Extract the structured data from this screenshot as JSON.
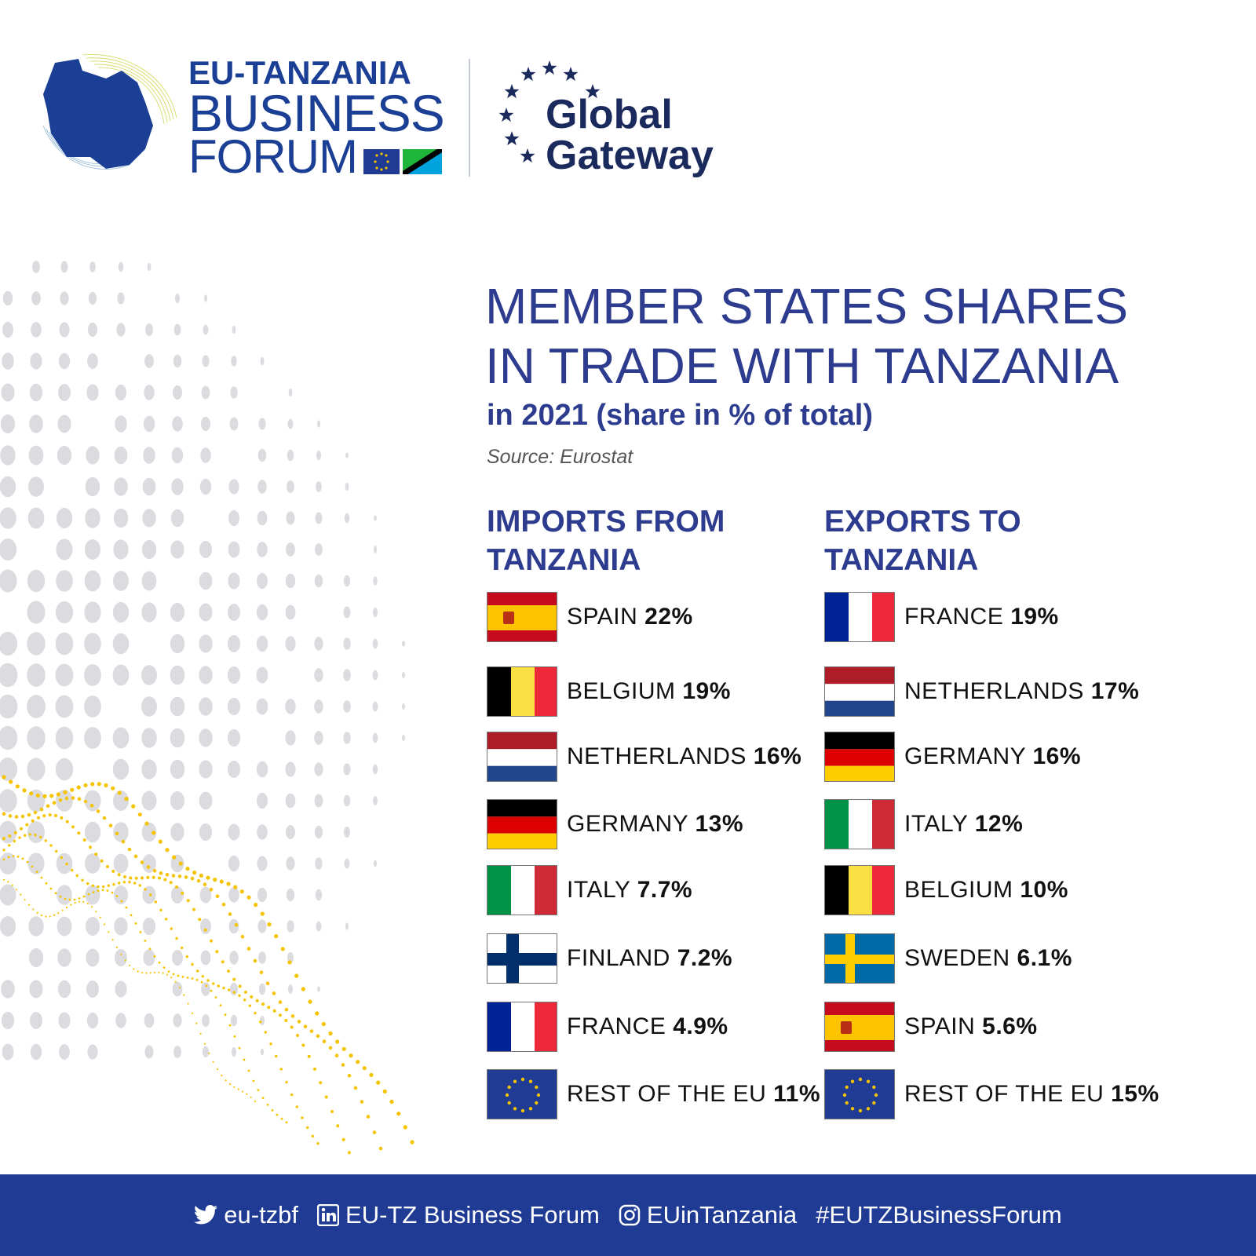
{
  "header": {
    "brand_line1": "EU-TANZANIA",
    "brand_line2": "BUSINESS",
    "brand_line3": "FORUM",
    "gateway_line1": "Global",
    "gateway_line2": "Gateway"
  },
  "title": {
    "line1": "MEMBER STATES SHARES",
    "line2": "IN TRADE WITH TANZANIA",
    "subtitle": "in 2021 (share in % of total)",
    "source": "Source: Eurostat"
  },
  "imports": {
    "heading_line1": "IMPORTS FROM",
    "heading_line2": "TANZANIA",
    "items": [
      {
        "country": "SPAIN",
        "share": "22%",
        "flag": "spain"
      },
      {
        "country": "BELGIUM",
        "share": "19%",
        "flag": "belgium"
      },
      {
        "country": "NETHERLANDS",
        "share": "16%",
        "flag": "netherlands"
      },
      {
        "country": "GERMANY",
        "share": "13%",
        "flag": "germany"
      },
      {
        "country": "ITALY",
        "share": "7.7%",
        "flag": "italy"
      },
      {
        "country": "FINLAND ",
        "share": "7.2%",
        "flag": "finland"
      },
      {
        "country": "FRANCE",
        "share": "4.9%",
        "flag": "france"
      },
      {
        "country": "REST OF THE EU",
        "share": "11%",
        "flag": "eu"
      }
    ]
  },
  "exports": {
    "heading_line1": "EXPORTS TO",
    "heading_line2": "TANZANIA",
    "items": [
      {
        "country": "FRANCE",
        "share": "19%",
        "flag": "france"
      },
      {
        "country": "NETHERLANDS",
        "share": "17%",
        "flag": "netherlands"
      },
      {
        "country": "GERMANY",
        "share": "16%",
        "flag": "germany"
      },
      {
        "country": "ITALY",
        "share": "12%",
        "flag": "italy"
      },
      {
        "country": "BELGIUM",
        "share": "10%",
        "flag": "belgium"
      },
      {
        "country": "SWEDEN",
        "share": "6.1%",
        "flag": "sweden"
      },
      {
        "country": "SPAIN",
        "share": "5.6%",
        "flag": "spain"
      },
      {
        "country": "REST OF THE EU",
        "share": "15%",
        "flag": "eu"
      }
    ]
  },
  "footer": {
    "twitter": "eu-tzbf",
    "linkedin": "EU-TZ Business Forum",
    "instagram": "EUinTanzania",
    "hashtag": "#EUTZBusinessForum"
  },
  "colors": {
    "brand_blue": "#1a3f95",
    "title_blue": "#2d3c8e",
    "footer_blue": "#1f3b94",
    "accent_yellow": "#f5c400",
    "dot_grey": "#dcdce0"
  }
}
